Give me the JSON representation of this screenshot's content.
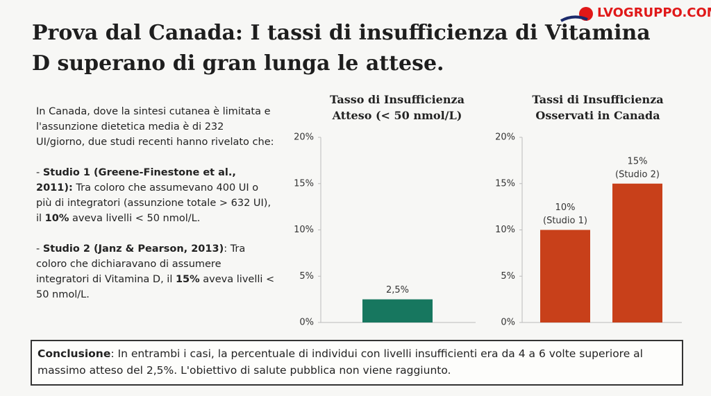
{
  "logo": "LVOGRUPPO.COM",
  "title": "Prova dal Canada: I tassi di insufficienza di Vitamina D superano di gran lunga le attese.",
  "intro": "In Canada, dove la sintesi cutanea è limitata e l'assunzione dietetica media è di 232 UI/giorno, due studi recenti hanno rivelato che:",
  "studies": [
    {
      "parts": [
        {
          "text": "- "
        },
        {
          "text": "Studio 1 (Greene-Finestone et al., 2011):",
          "bold": true
        },
        {
          "text": " Tra coloro che assumevano 400 UI o più di integratori (assunzione totale > 632 UI), il "
        },
        {
          "text": "10%",
          "bold": true
        },
        {
          "text": " aveva livelli < 50 nmol/L."
        }
      ]
    },
    {
      "parts": [
        {
          "text": "- "
        },
        {
          "text": "Studio 2 (Janz & Pearson, 2013)",
          "bold": true
        },
        {
          "text": ": Tra coloro che dichiaravano di assumere integratori di Vitamina D, il "
        },
        {
          "text": "15%",
          "bold": true
        },
        {
          "text": " aveva livelli < 50 nmol/L."
        }
      ]
    }
  ],
  "conclusion": {
    "parts": [
      {
        "text": "Conclusione",
        "bold": true
      },
      {
        "text": ": In entrambi i casi, la percentuale di individui con livelli insufficienti era da 4 a 6 volte superiore al massimo atteso del 2,5%. L'obiettivo di salute pubblica non viene raggiunto."
      }
    ]
  },
  "chart_data": [
    {
      "type": "bar",
      "title": "Tasso di Insufficienza Atteso (< 50 nmol/L)",
      "values": [
        2.5
      ],
      "value_labels": [
        "2,5%"
      ],
      "color": "#17775f",
      "ylim": [
        0,
        20
      ],
      "yticks": [
        {
          "value": 0,
          "label": "0%"
        },
        {
          "value": 5,
          "label": "5%"
        },
        {
          "value": 10,
          "label": "10%"
        },
        {
          "value": 15,
          "label": "15%"
        },
        {
          "value": 20,
          "label": "20%"
        }
      ]
    },
    {
      "type": "bar",
      "title": "Tassi di Insufficienza Osservati in Canada",
      "values": [
        10,
        15
      ],
      "value_labels": [
        "10%",
        "15%"
      ],
      "annotations": [
        "(Studio 1)",
        "(Studio 2)"
      ],
      "color": "#c8401a",
      "ylim": [
        0,
        20
      ],
      "yticks": [
        {
          "value": 0,
          "label": "0%"
        },
        {
          "value": 5,
          "label": "5%"
        },
        {
          "value": 10,
          "label": "10%"
        },
        {
          "value": 15,
          "label": "15%"
        },
        {
          "value": 20,
          "label": "20%"
        }
      ]
    }
  ]
}
